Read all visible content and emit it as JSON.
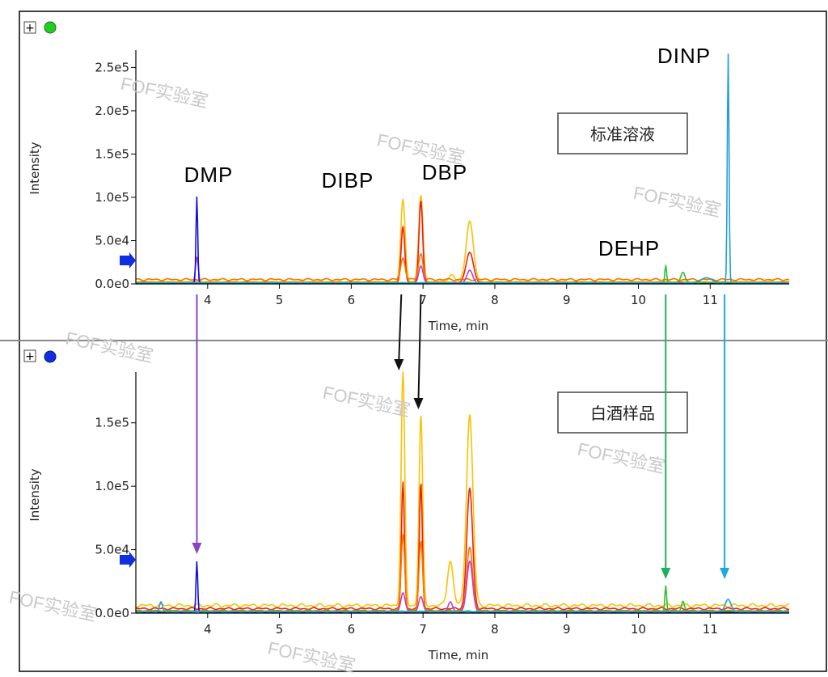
{
  "chart_data": [
    {
      "type": "line",
      "panel_label": "标准溶液",
      "xlabel": "Time, min",
      "ylabel": "Intensity",
      "xlim": [
        3.0,
        12.1
      ],
      "ylim": [
        0,
        270000
      ],
      "x_ticks": [
        4,
        5,
        6,
        7,
        8,
        9,
        10,
        11
      ],
      "y_ticks": [
        {
          "v": 0,
          "label": "0.0e0"
        },
        {
          "v": 50000,
          "label": "5.0e4"
        },
        {
          "v": 100000,
          "label": "1.0e5"
        },
        {
          "v": 150000,
          "label": "1.5e5"
        },
        {
          "v": 200000,
          "label": "2.0e5"
        },
        {
          "v": 250000,
          "label": "2.5e5"
        }
      ],
      "peak_labels": [
        {
          "name": "DMP",
          "x": 3.85
        },
        {
          "name": "DIBP",
          "x": 6.72
        },
        {
          "name": "DBP",
          "x": 6.97
        },
        {
          "name": "DEHP",
          "x": 10.38
        },
        {
          "name": "DINP",
          "x": 11.25
        }
      ],
      "series": [
        {
          "color": "#FFC000",
          "baseline": 2500,
          "peaks": [
            [
              6.72,
              95000,
              0.03
            ],
            [
              6.97,
              100000,
              0.03
            ],
            [
              7.4,
              8000,
              0.04
            ],
            [
              7.65,
              70000,
              0.05
            ]
          ]
        },
        {
          "color": "#E8201A",
          "baseline": 1500,
          "peaks": [
            [
              6.72,
              65000,
              0.025
            ],
            [
              6.97,
              95000,
              0.025
            ],
            [
              7.65,
              35000,
              0.05
            ]
          ]
        },
        {
          "color": "#FF7000",
          "baseline": 5000,
          "peaks": [
            [
              6.72,
              25000,
              0.03
            ],
            [
              6.97,
              30000,
              0.03
            ]
          ]
        },
        {
          "color": "#C040C0",
          "baseline": 800,
          "peaks": [
            [
              3.85,
              30000,
              0.02
            ],
            [
              6.97,
              20000,
              0.03
            ],
            [
              7.65,
              15000,
              0.04
            ]
          ]
        },
        {
          "color": "#1010E0",
          "baseline": 500,
          "peaks": [
            [
              3.85,
              100000,
              0.012
            ]
          ]
        },
        {
          "color": "#30C030",
          "baseline": 1500,
          "peaks": [
            [
              10.38,
              20000,
              0.012
            ],
            [
              10.62,
              12000,
              0.03
            ]
          ]
        },
        {
          "color": "#20A0E0",
          "baseline": 1000,
          "peaks": [
            [
              10.95,
              6000,
              0.08
            ],
            [
              11.25,
              265000,
              0.012
            ]
          ]
        }
      ]
    },
    {
      "type": "line",
      "panel_label": "白酒样品",
      "xlabel": "Time, min",
      "ylabel": "Intensity",
      "xlim": [
        3.0,
        12.1
      ],
      "ylim": [
        0,
        190000
      ],
      "x_ticks": [
        4,
        5,
        6,
        7,
        8,
        9,
        10,
        11
      ],
      "y_ticks": [
        {
          "v": 0,
          "label": "0.0e0"
        },
        {
          "v": 50000,
          "label": "5.0e4"
        },
        {
          "v": 100000,
          "label": "1.0e5"
        },
        {
          "v": 150000,
          "label": "1.5e5"
        }
      ],
      "series": [
        {
          "color": "#FFC000",
          "baseline": 6000,
          "peaks": [
            [
              6.72,
              185000,
              0.025
            ],
            [
              6.97,
              150000,
              0.025
            ],
            [
              7.38,
              35000,
              0.04
            ],
            [
              7.65,
              150000,
              0.045
            ]
          ]
        },
        {
          "color": "#E8201A",
          "baseline": 3500,
          "peaks": [
            [
              6.72,
              100000,
              0.02
            ],
            [
              6.97,
              100000,
              0.02
            ],
            [
              7.65,
              95000,
              0.04
            ]
          ]
        },
        {
          "color": "#FF7000",
          "baseline": 2000,
          "peaks": [
            [
              6.72,
              60000,
              0.025
            ],
            [
              6.97,
              55000,
              0.025
            ],
            [
              7.65,
              50000,
              0.04
            ]
          ]
        },
        {
          "color": "#C040C0",
          "baseline": 1000,
          "peaks": [
            [
              6.72,
              15000,
              0.03
            ],
            [
              6.97,
              12000,
              0.03
            ],
            [
              7.38,
              8000,
              0.03
            ],
            [
              7.65,
              40000,
              0.04
            ]
          ]
        },
        {
          "color": "#1010E0",
          "baseline": 500,
          "peaks": [
            [
              3.85,
              40000,
              0.012
            ]
          ]
        },
        {
          "color": "#30C030",
          "baseline": 1500,
          "peaks": [
            [
              10.38,
              20000,
              0.012
            ],
            [
              10.62,
              8000,
              0.02
            ]
          ]
        },
        {
          "color": "#20A0E0",
          "baseline": 1000,
          "peaks": [
            [
              3.35,
              8000,
              0.02
            ],
            [
              11.25,
              10000,
              0.04
            ]
          ]
        }
      ]
    }
  ],
  "panel_markers": [
    {
      "expand": "+",
      "dot_color": "#22CC22"
    },
    {
      "expand": "+",
      "dot_color": "#1030E0"
    }
  ],
  "connector_arrows": [
    {
      "x_top": 3.85,
      "x_bottom": 3.85,
      "color": "#8A44C8"
    },
    {
      "x_top": 6.72,
      "x_bottom": 6.72,
      "color": "#111111"
    },
    {
      "x_top": 6.97,
      "x_bottom": 6.97,
      "color": "#111111"
    },
    {
      "x_top": 10.38,
      "x_bottom": 10.38,
      "color": "#22B060"
    },
    {
      "x_top": 11.2,
      "x_bottom": 11.2,
      "color": "#20A8E0"
    }
  ],
  "watermark": "FOF实验室"
}
